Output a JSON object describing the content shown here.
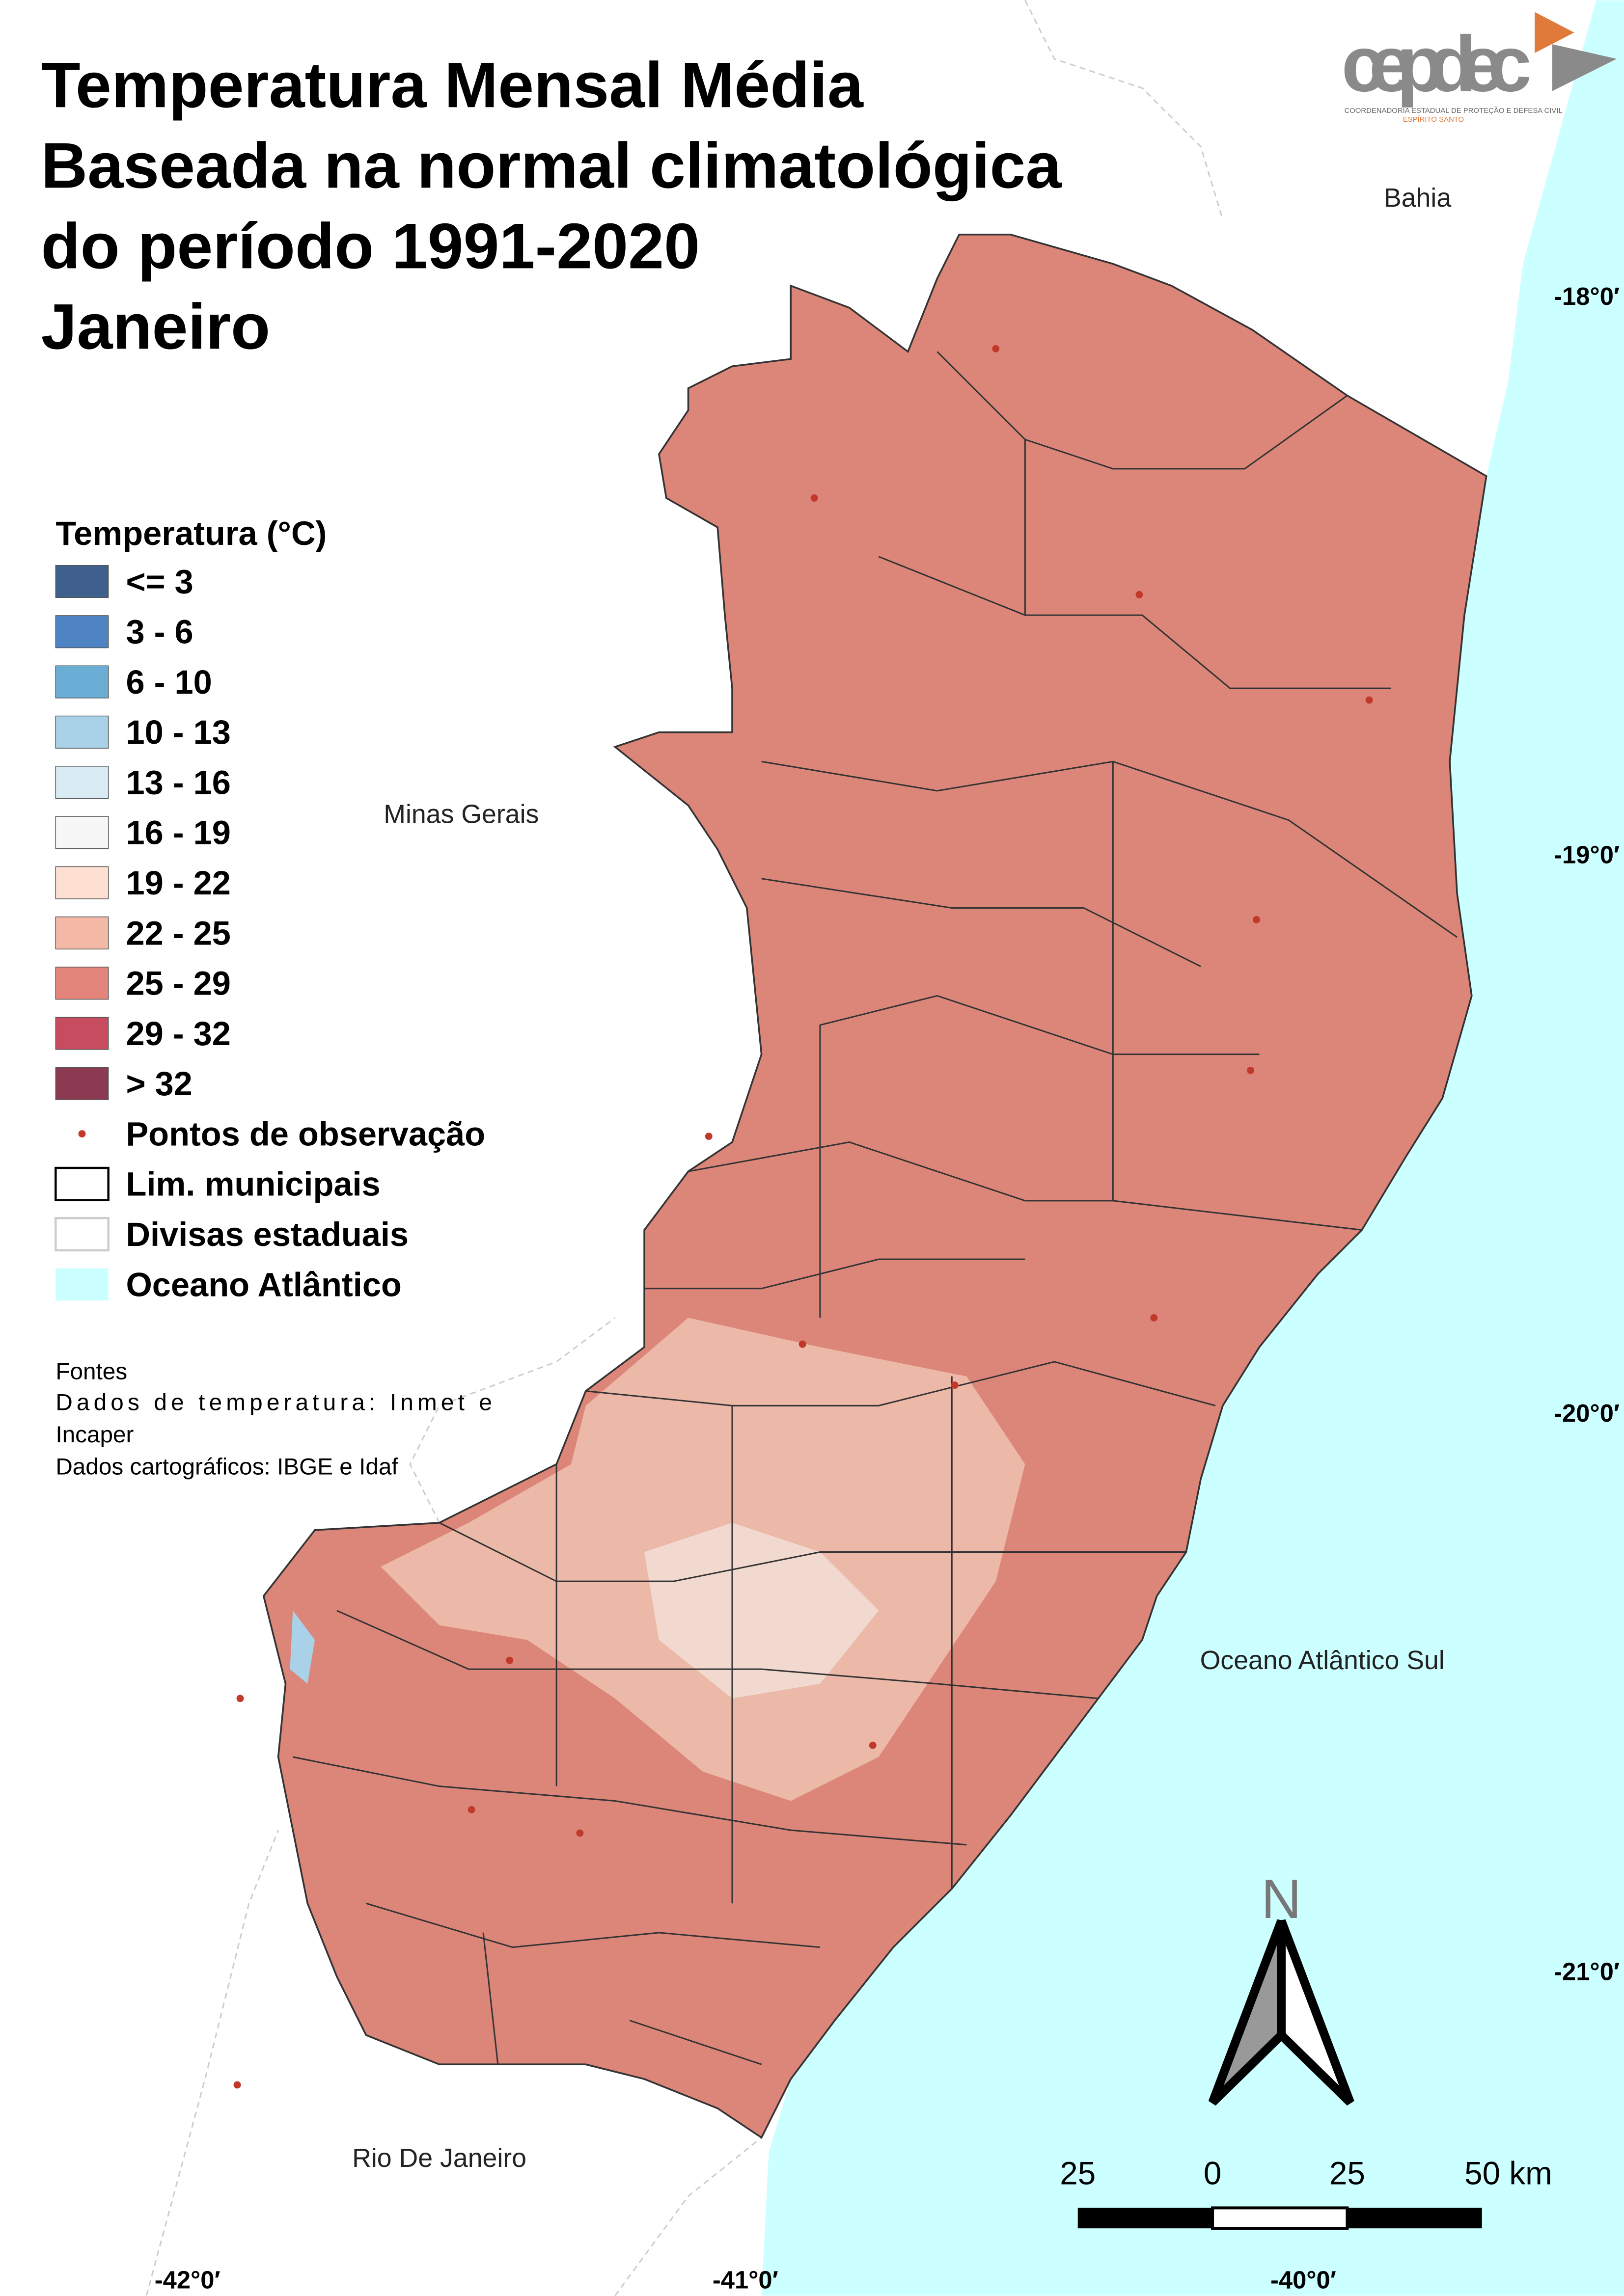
{
  "header": {
    "title_lines": [
      "Temperatura Mensal Média",
      "Baseada na normal climatológica",
      "do período 1991-2020",
      "Janeiro"
    ],
    "logo": "cepdec",
    "logo_subtitle": [
      "COORDENADORIA ESTADUAL DE PROTEÇÃO E DEFESA CIVIL",
      "ESPÍRITO SANTO"
    ]
  },
  "legend": {
    "title": "Temperatura (°C)",
    "items": [
      {
        "label": "<= 3",
        "color": "#3f5f8c"
      },
      {
        "label": "3 - 6",
        "color": "#4f84c4"
      },
      {
        "label": "6 - 10",
        "color": "#6aaed6"
      },
      {
        "label": "10 - 13",
        "color": "#a9d1e8"
      },
      {
        "label": "13 - 16",
        "color": "#d9ebf3"
      },
      {
        "label": "16 - 19",
        "color": "#f7f7f7"
      },
      {
        "label": "19 - 22",
        "color": "#fde0d2"
      },
      {
        "label": "22 - 25",
        "color": "#f4b9a6"
      },
      {
        "label": "25 - 29",
        "color": "#e3857a"
      },
      {
        "label": "29 - 32",
        "color": "#c84c5f"
      },
      {
        "label": "> 32",
        "color": "#8b3a52"
      }
    ],
    "layers": [
      {
        "label": "Pontos de observação",
        "kind": "point"
      },
      {
        "label": "Lim. municipais",
        "kind": "municipal"
      },
      {
        "label": "Divisas estaduais",
        "kind": "state"
      },
      {
        "label": "Oceano Atlântico",
        "kind": "ocean",
        "color": "#ccffff"
      }
    ]
  },
  "sources": [
    "Fontes",
    "Dados de temperatura: Inmet e",
    "Incaper",
    "Dados cartográficos: IBGE e Idaf"
  ],
  "places": {
    "bahia": "Bahia",
    "minas": "Minas Gerais",
    "ocean": "Oceano Atlântico Sul",
    "rio": "Rio De Janeiro"
  },
  "latitudes": [
    "-18°0′",
    "-19°0′",
    "-20°0′",
    "-21°0′"
  ],
  "longitudes": [
    "-42°0′",
    "-41°0′",
    "-40°0′"
  ],
  "north": "N",
  "scale_labels": [
    "25",
    "0",
    "25",
    "50 km"
  ]
}
